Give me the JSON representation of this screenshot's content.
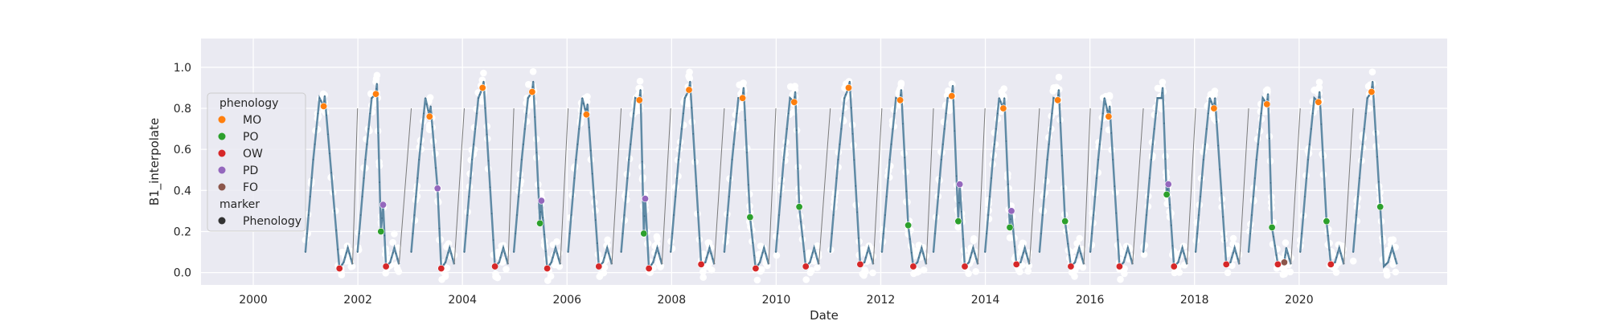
{
  "chart_data": {
    "type": "scatter",
    "title": "",
    "xlabel": "Date",
    "ylabel": "B1_interpolate",
    "xlim": [
      "1999-01-01",
      "2022-11-01"
    ],
    "ylim": [
      -0.06,
      1.14
    ],
    "x_ticks": [
      "2000",
      "2002",
      "2004",
      "2006",
      "2008",
      "2010",
      "2012",
      "2014",
      "2016",
      "2018",
      "2020"
    ],
    "y_ticks": [
      "0.0",
      "0.2",
      "0.4",
      "0.6",
      "0.8",
      "1.0"
    ],
    "grid": true,
    "background": "#eaeaf2",
    "legend": {
      "placement": "upper-left",
      "titles": {
        "phenology": "phenology",
        "marker": "marker"
      },
      "phenology_items": [
        {
          "label": "MO",
          "color": "#ff7f0e"
        },
        {
          "label": "PO",
          "color": "#2ca02c"
        },
        {
          "label": "OW",
          "color": "#d62728"
        },
        {
          "label": "PD",
          "color": "#9467bd"
        },
        {
          "label": "FO",
          "color": "#8c564b"
        }
      ],
      "marker_items": [
        {
          "label": "Phenology",
          "color": "#333333"
        }
      ]
    },
    "series_styles": {
      "raw_points": "#ffffff",
      "interpolated_line": "#5f8aa5",
      "gap_connector": "#7a7a7a"
    },
    "seasonal_cycle_phenology": [
      {
        "year": 2000,
        "MO": {
          "x": "2001-05-06",
          "y": 0.81
        },
        "OW": {
          "x": "2001-08-25",
          "y": 0.02
        }
      },
      {
        "year": 2001,
        "MO": {
          "x": "2002-05-05",
          "y": 0.87
        },
        "PO": {
          "x": "2002-06-10",
          "y": 0.2
        },
        "PD": {
          "x": "2002-06-25",
          "y": 0.33
        },
        "OW": {
          "x": "2002-07-15",
          "y": 0.03
        }
      },
      {
        "year": 2003,
        "MO": {
          "x": "2003-05-15",
          "y": 0.76
        },
        "PD": {
          "x": "2003-07-10",
          "y": 0.41
        },
        "OW": {
          "x": "2003-08-05",
          "y": 0.02
        }
      },
      {
        "year": 2004,
        "MO": {
          "x": "2004-05-20",
          "y": 0.9
        },
        "OW": {
          "x": "2004-08-15",
          "y": 0.03
        }
      },
      {
        "year": 2005,
        "MO": {
          "x": "2005-05-01",
          "y": 0.88
        },
        "PO": {
          "x": "2005-06-25",
          "y": 0.24
        },
        "PD": {
          "x": "2005-07-05",
          "y": 0.35
        },
        "OW": {
          "x": "2005-08-15",
          "y": 0.02
        }
      },
      {
        "year": 2006,
        "MO": {
          "x": "2006-05-15",
          "y": 0.77
        },
        "OW": {
          "x": "2006-08-10",
          "y": 0.03
        }
      },
      {
        "year": 2007,
        "MO": {
          "x": "2007-05-20",
          "y": 0.84
        },
        "PO": {
          "x": "2007-06-20",
          "y": 0.19
        },
        "PD": {
          "x": "2007-06-30",
          "y": 0.36
        },
        "OW": {
          "x": "2007-07-25",
          "y": 0.02
        }
      },
      {
        "year": 2008,
        "MO": {
          "x": "2008-05-01",
          "y": 0.89
        },
        "OW": {
          "x": "2008-07-25",
          "y": 0.04
        }
      },
      {
        "year": 2009,
        "MO": {
          "x": "2009-05-10",
          "y": 0.85
        },
        "PO": {
          "x": "2009-07-01",
          "y": 0.27
        },
        "OW": {
          "x": "2009-08-10",
          "y": 0.02
        }
      },
      {
        "year": 2010,
        "MO": {
          "x": "2010-05-05",
          "y": 0.83
        },
        "PO": {
          "x": "2010-06-10",
          "y": 0.32
        },
        "OW": {
          "x": "2010-07-25",
          "y": 0.03
        }
      },
      {
        "year": 2011,
        "MO": {
          "x": "2011-05-20",
          "y": 0.9
        },
        "OW": {
          "x": "2011-08-10",
          "y": 0.04
        }
      },
      {
        "year": 2012,
        "MO": {
          "x": "2012-05-15",
          "y": 0.84
        },
        "PO": {
          "x": "2012-07-10",
          "y": 0.23
        },
        "OW": {
          "x": "2012-08-15",
          "y": 0.03
        }
      },
      {
        "year": 2013,
        "MO": {
          "x": "2013-05-10",
          "y": 0.86
        },
        "PO": {
          "x": "2013-06-25",
          "y": 0.25
        },
        "PD": {
          "x": "2013-07-05",
          "y": 0.43
        },
        "OW": {
          "x": "2013-08-10",
          "y": 0.03
        }
      },
      {
        "year": 2014,
        "MO": {
          "x": "2014-05-05",
          "y": 0.8
        },
        "PO": {
          "x": "2014-06-20",
          "y": 0.22
        },
        "PD": {
          "x": "2014-07-01",
          "y": 0.3
        },
        "OW": {
          "x": "2014-08-05",
          "y": 0.04
        }
      },
      {
        "year": 2015,
        "MO": {
          "x": "2015-05-20",
          "y": 0.84
        },
        "PO": {
          "x": "2015-07-10",
          "y": 0.25
        },
        "OW": {
          "x": "2015-08-20",
          "y": 0.03
        }
      },
      {
        "year": 2016,
        "MO": {
          "x": "2016-05-10",
          "y": 0.76
        },
        "OW": {
          "x": "2016-07-25",
          "y": 0.03
        }
      },
      {
        "year": 2017,
        "PO": {
          "x": "2017-06-20",
          "y": 0.38
        },
        "PD": {
          "x": "2017-07-01",
          "y": 0.43
        },
        "OW": {
          "x": "2017-08-10",
          "y": 0.03
        }
      },
      {
        "year": 2018,
        "MO": {
          "x": "2018-05-15",
          "y": 0.8
        },
        "OW": {
          "x": "2018-08-10",
          "y": 0.04
        }
      },
      {
        "year": 2019,
        "MO": {
          "x": "2019-05-20",
          "y": 0.82
        },
        "PO": {
          "x": "2019-06-25",
          "y": 0.22
        },
        "OW": {
          "x": "2019-08-05",
          "y": 0.04
        },
        "FO": {
          "x": "2019-09-20",
          "y": 0.05
        }
      },
      {
        "year": 2020,
        "MO": {
          "x": "2020-05-15",
          "y": 0.83
        },
        "PO": {
          "x": "2020-07-10",
          "y": 0.25
        },
        "OW": {
          "x": "2020-08-10",
          "y": 0.04
        }
      },
      {
        "year": 2021,
        "MO": {
          "x": "2021-05-20",
          "y": 0.88
        },
        "PO": {
          "x": "2021-07-20",
          "y": 0.32
        }
      }
    ]
  }
}
